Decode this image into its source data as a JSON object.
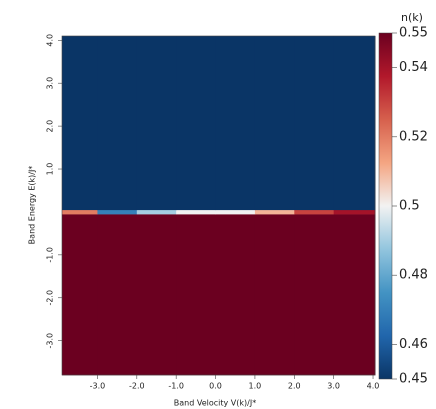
{
  "chart_data": {
    "type": "heatmap",
    "xlabel": "Band Velocity V(k)/J*",
    "ylabel": "Band Energy E(k)/J*",
    "colorbar_label": "n(k)",
    "x": [
      -3.9,
      -3,
      -2,
      -1,
      0,
      1,
      2,
      3,
      4.05
    ],
    "y": [
      -3.8,
      -0.05,
      0.05,
      4.1
    ],
    "z": [
      [
        0.55,
        0.55,
        0.55,
        0.55,
        0.55,
        0.55,
        0.55,
        0.55
      ],
      [
        0.52,
        0.47,
        0.49,
        0.5,
        0.5,
        0.51,
        0.53,
        0.54
      ],
      [
        0.45,
        0.45,
        0.45,
        0.45,
        0.45,
        0.45,
        0.45,
        0.45
      ]
    ],
    "xlim": [
      -3.9,
      4.05
    ],
    "ylim": [
      -3.8,
      4.1
    ],
    "xticks": [
      {
        "value": -3,
        "label": "-3.0"
      },
      {
        "value": -2,
        "label": "-2.0"
      },
      {
        "value": -1,
        "label": "-1.0"
      },
      {
        "value": 0,
        "label": "0.0"
      },
      {
        "value": 1,
        "label": "1.0"
      },
      {
        "value": 2,
        "label": "2.0"
      },
      {
        "value": 3,
        "label": "3.0"
      },
      {
        "value": 4,
        "label": "4.0"
      }
    ],
    "yticks": [
      {
        "value": -3,
        "label": "-3.0"
      },
      {
        "value": -2,
        "label": "-2.0"
      },
      {
        "value": -1,
        "label": "-1.0"
      },
      {
        "value": 1,
        "label": "1.0"
      },
      {
        "value": 2,
        "label": "2.0"
      },
      {
        "value": 3,
        "label": "3.0"
      },
      {
        "value": 4,
        "label": "4.0"
      }
    ],
    "zlim": [
      0.45,
      0.55
    ],
    "zticks": [
      0.45,
      0.46,
      0.48,
      0.5,
      0.52,
      0.54,
      0.55
    ],
    "colorscale": [
      "#0a3566",
      "#2166ac",
      "#4393c3",
      "#92c5de",
      "#f2f2f2",
      "#f4a582",
      "#d6604d",
      "#b2182b",
      "#6b0020"
    ]
  }
}
